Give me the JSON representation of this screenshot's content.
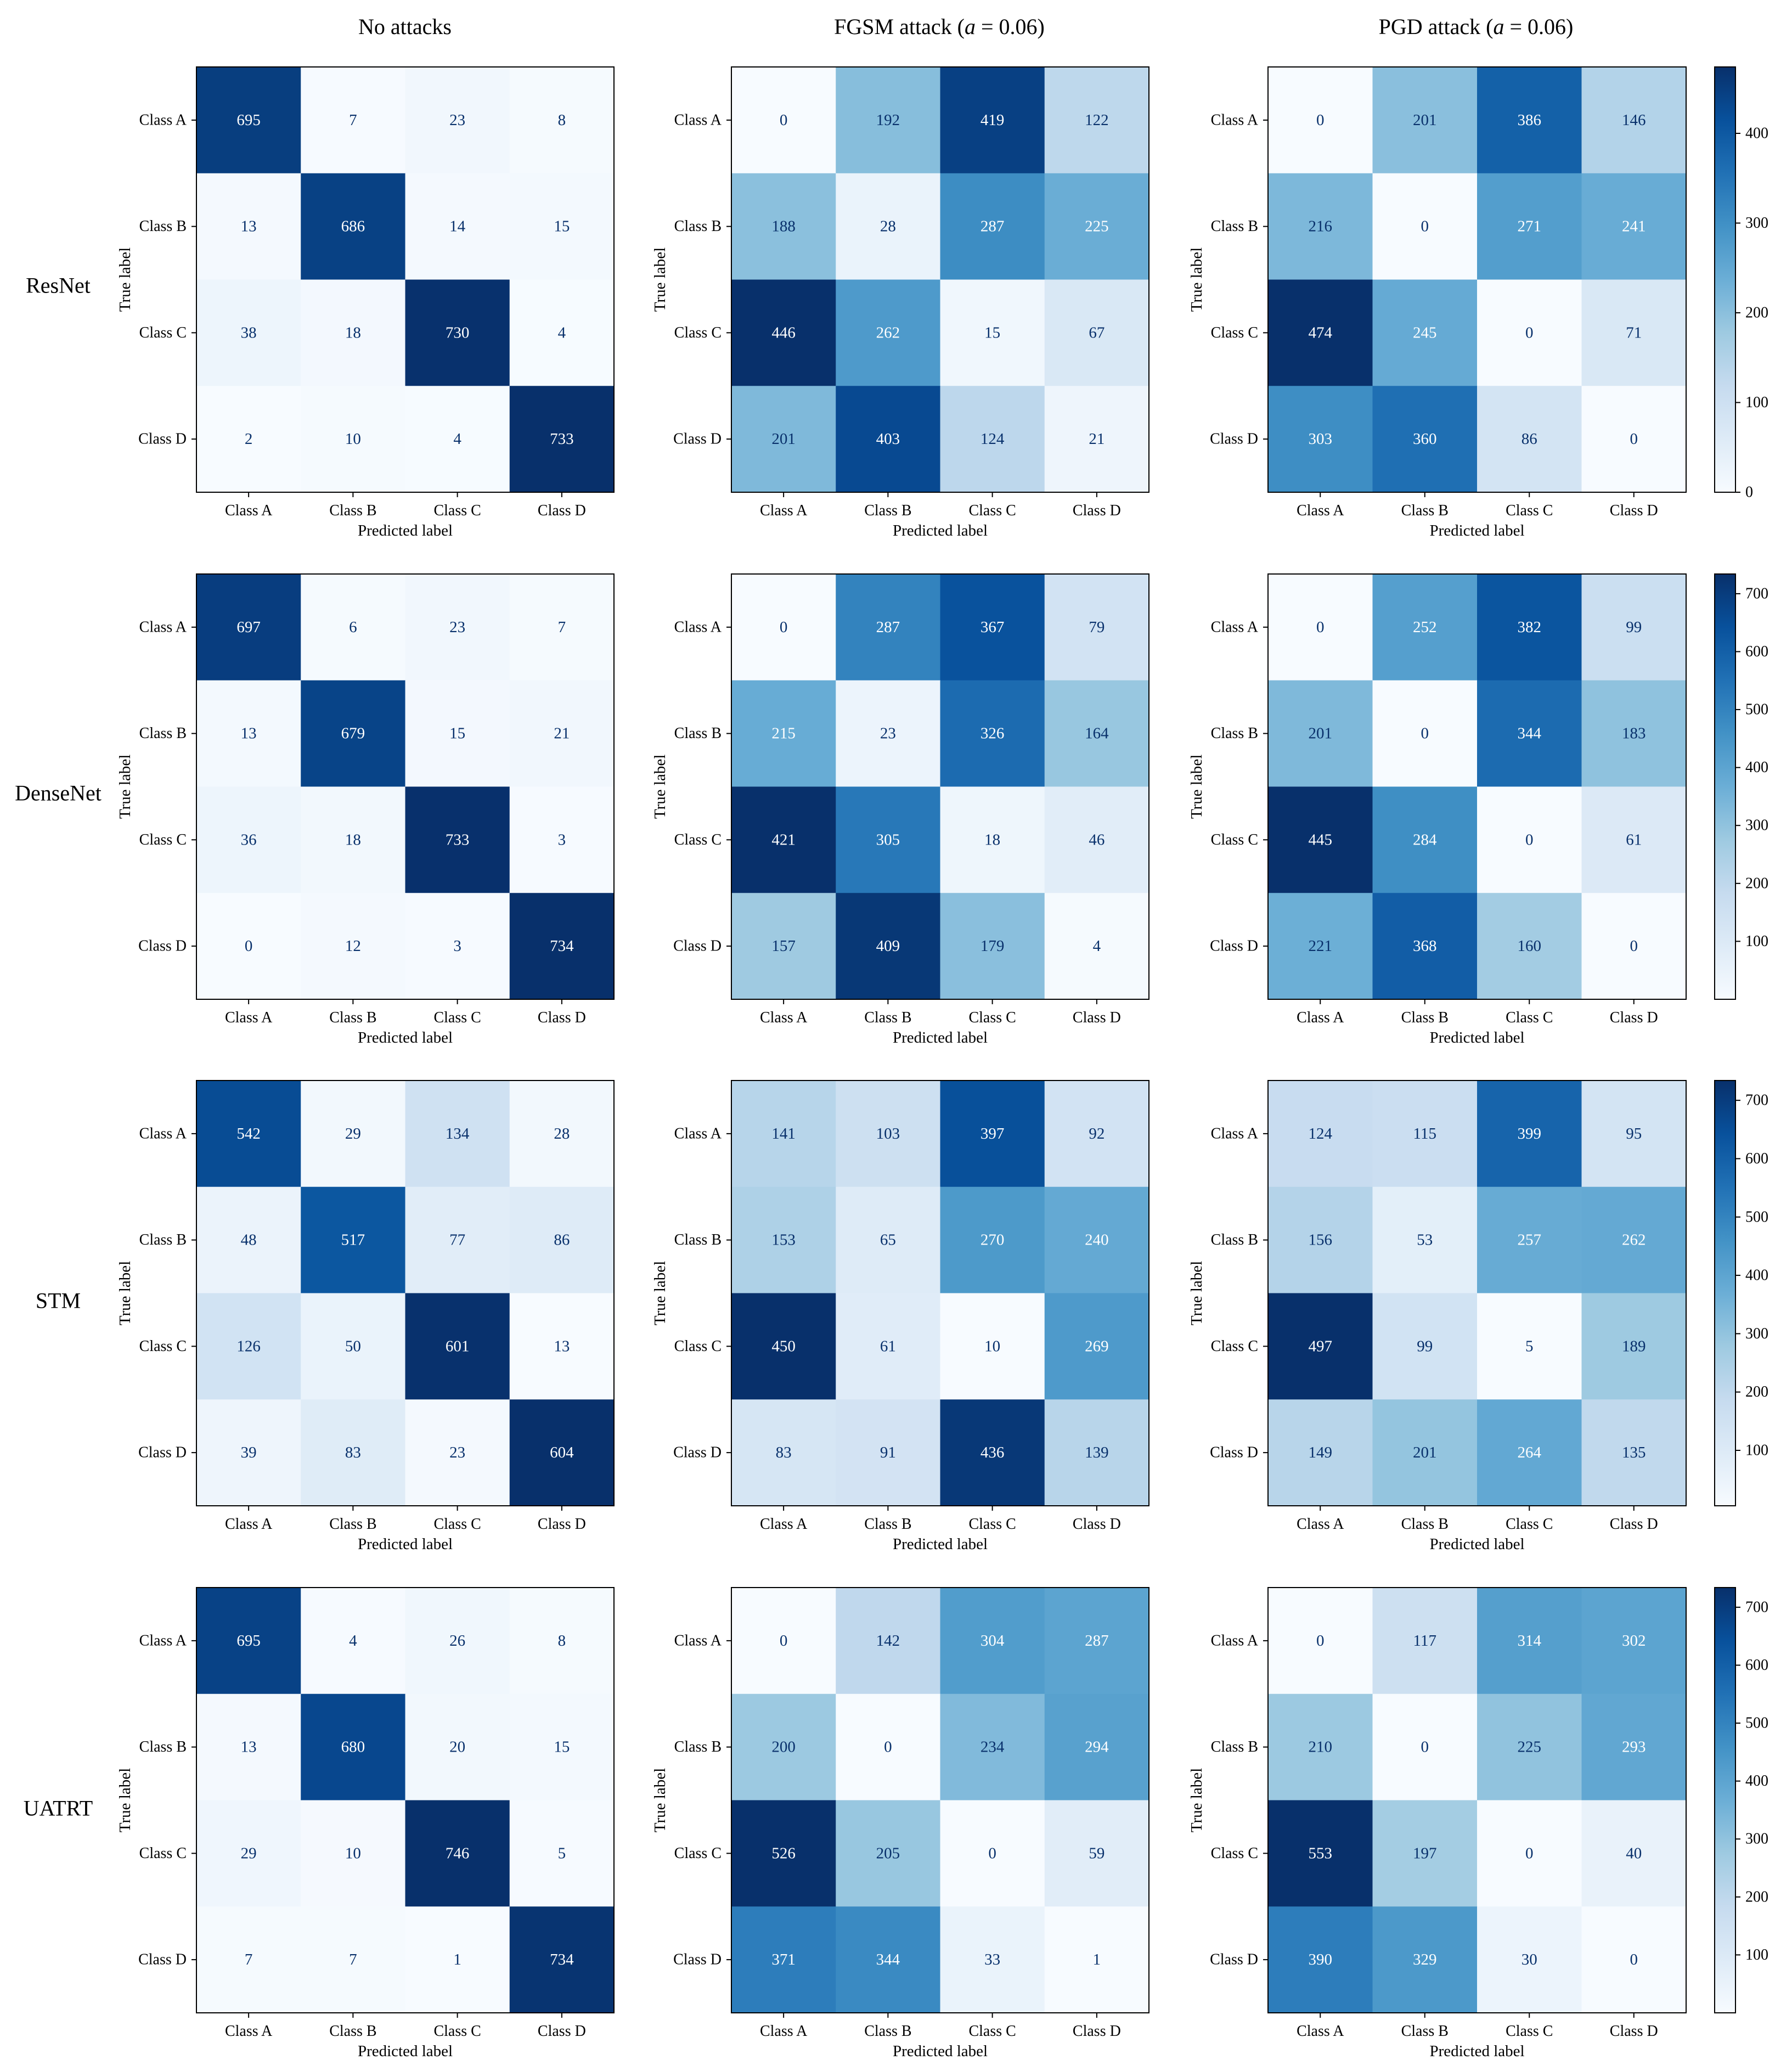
{
  "figure": {
    "column_titles": [
      {
        "text": "No attacks"
      },
      {
        "prefix": "FGSM attack (",
        "symbol": "a",
        "suffix": " = 0.06)"
      },
      {
        "prefix": "PGD attack (",
        "symbol": "a",
        "suffix": " = 0.06)"
      }
    ],
    "row_labels": [
      "ResNet",
      "DenseNet",
      "STM",
      "UATRT"
    ],
    "colormap": "Blues",
    "colors": {
      "low": "#f7fbff",
      "high": "#08306b",
      "light_text": "#ffffff",
      "dark_text": "#08306b",
      "axis": "#000000"
    }
  },
  "chart_data": [
    {
      "type": "heatmap",
      "model": "ResNet",
      "condition": "No attacks",
      "xlabel": "Predicted label",
      "ylabel": "True label",
      "x_categories": [
        "Class A",
        "Class B",
        "Class C",
        "Class D"
      ],
      "y_categories": [
        "Class A",
        "Class B",
        "Class C",
        "Class D"
      ],
      "values": [
        [
          695,
          7,
          23,
          8
        ],
        [
          13,
          686,
          14,
          15
        ],
        [
          38,
          18,
          730,
          4
        ],
        [
          2,
          10,
          4,
          733
        ]
      ],
      "colorbar": null
    },
    {
      "type": "heatmap",
      "model": "ResNet",
      "condition": "FGSM attack (a = 0.06)",
      "xlabel": "Predicted label",
      "ylabel": "True label",
      "x_categories": [
        "Class A",
        "Class B",
        "Class C",
        "Class D"
      ],
      "y_categories": [
        "Class A",
        "Class B",
        "Class C",
        "Class D"
      ],
      "values": [
        [
          0,
          192,
          419,
          122
        ],
        [
          188,
          28,
          287,
          225
        ],
        [
          446,
          262,
          15,
          67
        ],
        [
          201,
          403,
          124,
          21
        ]
      ],
      "colorbar": null
    },
    {
      "type": "heatmap",
      "model": "ResNet",
      "condition": "PGD attack (a = 0.06)",
      "xlabel": "Predicted label",
      "ylabel": "True label",
      "x_categories": [
        "Class A",
        "Class B",
        "Class C",
        "Class D"
      ],
      "y_categories": [
        "Class A",
        "Class B",
        "Class C",
        "Class D"
      ],
      "values": [
        [
          0,
          201,
          386,
          146
        ],
        [
          216,
          0,
          271,
          241
        ],
        [
          474,
          245,
          0,
          71
        ],
        [
          303,
          360,
          86,
          0
        ]
      ],
      "colorbar": {
        "range": [
          0,
          474
        ],
        "ticks": [
          0,
          100,
          200,
          300,
          400
        ]
      }
    },
    {
      "type": "heatmap",
      "model": "DenseNet",
      "condition": "No attacks",
      "xlabel": "Predicted label",
      "ylabel": "True label",
      "x_categories": [
        "Class A",
        "Class B",
        "Class C",
        "Class D"
      ],
      "y_categories": [
        "Class A",
        "Class B",
        "Class C",
        "Class D"
      ],
      "values": [
        [
          697,
          6,
          23,
          7
        ],
        [
          13,
          679,
          15,
          21
        ],
        [
          36,
          18,
          733,
          3
        ],
        [
          0,
          12,
          3,
          734
        ]
      ],
      "colorbar": null
    },
    {
      "type": "heatmap",
      "model": "DenseNet",
      "condition": "FGSM attack (a = 0.06)",
      "xlabel": "Predicted label",
      "ylabel": "True label",
      "x_categories": [
        "Class A",
        "Class B",
        "Class C",
        "Class D"
      ],
      "y_categories": [
        "Class A",
        "Class B",
        "Class C",
        "Class D"
      ],
      "values": [
        [
          0,
          287,
          367,
          79
        ],
        [
          215,
          23,
          326,
          164
        ],
        [
          421,
          305,
          18,
          46
        ],
        [
          157,
          409,
          179,
          4
        ]
      ],
      "colorbar": null
    },
    {
      "type": "heatmap",
      "model": "DenseNet",
      "condition": "PGD attack (a = 0.06)",
      "xlabel": "Predicted label",
      "ylabel": "True label",
      "x_categories": [
        "Class A",
        "Class B",
        "Class C",
        "Class D"
      ],
      "y_categories": [
        "Class A",
        "Class B",
        "Class C",
        "Class D"
      ],
      "values": [
        [
          0,
          252,
          382,
          99
        ],
        [
          201,
          0,
          344,
          183
        ],
        [
          445,
          284,
          0,
          61
        ],
        [
          221,
          368,
          160,
          0
        ]
      ],
      "colorbar": {
        "range": [
          0,
          734
        ],
        "ticks": [
          100,
          200,
          300,
          400,
          500,
          600,
          700
        ]
      }
    },
    {
      "type": "heatmap",
      "model": "STM",
      "condition": "No attacks",
      "xlabel": "Predicted label",
      "ylabel": "True label",
      "x_categories": [
        "Class A",
        "Class B",
        "Class C",
        "Class D"
      ],
      "y_categories": [
        "Class A",
        "Class B",
        "Class C",
        "Class D"
      ],
      "values": [
        [
          542,
          29,
          134,
          28
        ],
        [
          48,
          517,
          77,
          86
        ],
        [
          126,
          50,
          601,
          13
        ],
        [
          39,
          83,
          23,
          604
        ]
      ],
      "colorbar": null
    },
    {
      "type": "heatmap",
      "model": "STM",
      "condition": "FGSM attack (a = 0.06)",
      "xlabel": "Predicted label",
      "ylabel": "True label",
      "x_categories": [
        "Class A",
        "Class B",
        "Class C",
        "Class D"
      ],
      "y_categories": [
        "Class A",
        "Class B",
        "Class C",
        "Class D"
      ],
      "values": [
        [
          141,
          103,
          397,
          92
        ],
        [
          153,
          65,
          270,
          240
        ],
        [
          450,
          61,
          10,
          269
        ],
        [
          83,
          91,
          436,
          139
        ]
      ],
      "colorbar": null
    },
    {
      "type": "heatmap",
      "model": "STM",
      "condition": "PGD attack (a = 0.06)",
      "xlabel": "Predicted label",
      "ylabel": "True label",
      "x_categories": [
        "Class A",
        "Class B",
        "Class C",
        "Class D"
      ],
      "y_categories": [
        "Class A",
        "Class B",
        "Class C",
        "Class D"
      ],
      "values": [
        [
          124,
          115,
          399,
          95
        ],
        [
          156,
          53,
          257,
          262
        ],
        [
          497,
          99,
          5,
          189
        ],
        [
          149,
          201,
          264,
          135
        ]
      ],
      "colorbar": {
        "range": [
          5,
          734
        ],
        "ticks": [
          100,
          200,
          300,
          400,
          500,
          600,
          700
        ]
      }
    },
    {
      "type": "heatmap",
      "model": "UATRT",
      "condition": "No attacks",
      "xlabel": "Predicted label",
      "ylabel": "True label",
      "x_categories": [
        "Class A",
        "Class B",
        "Class C",
        "Class D"
      ],
      "y_categories": [
        "Class A",
        "Class B",
        "Class C",
        "Class D"
      ],
      "values": [
        [
          695,
          4,
          26,
          8
        ],
        [
          13,
          680,
          20,
          15
        ],
        [
          29,
          10,
          746,
          5
        ],
        [
          7,
          7,
          1,
          734
        ]
      ],
      "colorbar": null
    },
    {
      "type": "heatmap",
      "model": "UATRT",
      "condition": "FGSM attack (a = 0.06)",
      "xlabel": "Predicted label",
      "ylabel": "True label",
      "x_categories": [
        "Class A",
        "Class B",
        "Class C",
        "Class D"
      ],
      "y_categories": [
        "Class A",
        "Class B",
        "Class C",
        "Class D"
      ],
      "values": [
        [
          0,
          142,
          304,
          287
        ],
        [
          200,
          0,
          234,
          294
        ],
        [
          526,
          205,
          0,
          59
        ],
        [
          371,
          344,
          33,
          1
        ]
      ],
      "colorbar": null
    },
    {
      "type": "heatmap",
      "model": "UATRT",
      "condition": "PGD attack (a = 0.06)",
      "xlabel": "Predicted label",
      "ylabel": "True label",
      "x_categories": [
        "Class A",
        "Class B",
        "Class C",
        "Class D"
      ],
      "y_categories": [
        "Class A",
        "Class B",
        "Class C",
        "Class D"
      ],
      "values": [
        [
          0,
          117,
          314,
          302
        ],
        [
          210,
          0,
          225,
          293
        ],
        [
          553,
          197,
          0,
          40
        ],
        [
          390,
          329,
          30,
          0
        ]
      ],
      "colorbar": {
        "range": [
          0,
          734
        ],
        "ticks": [
          100,
          200,
          300,
          400,
          500,
          600,
          700
        ]
      }
    }
  ]
}
